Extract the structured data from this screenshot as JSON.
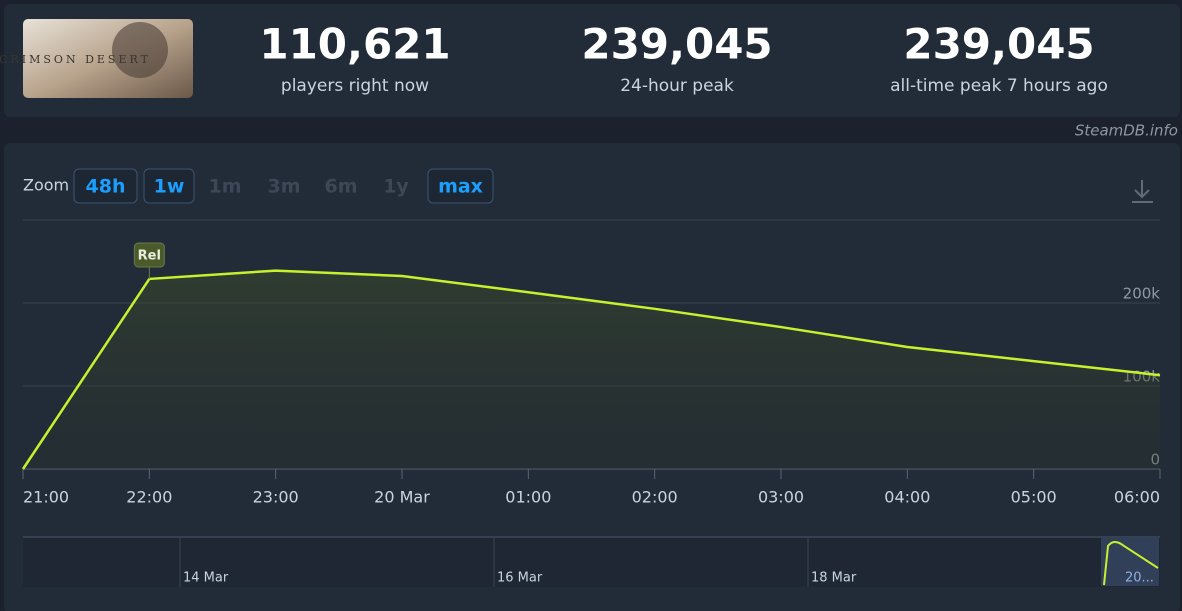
{
  "header": {
    "game_logo_text": "CRIMSON DESERT",
    "stats": [
      {
        "value": "110,621",
        "label": "players right now"
      },
      {
        "value": "239,045",
        "label": "24-hour peak"
      },
      {
        "value": "239,045",
        "label": "all-time peak 7 hours ago"
      }
    ],
    "credit": "SteamDB.info"
  },
  "zoom": {
    "label": "Zoom",
    "options": [
      {
        "label": "48h",
        "enabled": true
      },
      {
        "label": "1w",
        "enabled": true
      },
      {
        "label": "1m",
        "enabled": false
      },
      {
        "label": "3m",
        "enabled": false
      },
      {
        "label": "6m",
        "enabled": false
      },
      {
        "label": "1y",
        "enabled": false
      },
      {
        "label": "max",
        "enabled": true
      }
    ]
  },
  "chart_data": {
    "type": "area",
    "categories": [
      "21:00",
      "22:00",
      "23:00",
      "20 Mar",
      "01:00",
      "02:00",
      "03:00",
      "04:00",
      "05:00",
      "06:00"
    ],
    "series": [
      {
        "name": "Players",
        "color": "#c6f12e",
        "values": [
          0,
          229000,
          239045,
          232500,
          213000,
          193000,
          171000,
          147000,
          130000,
          113000
        ]
      }
    ],
    "ylim": [
      0,
      300000
    ],
    "yticks": [
      {
        "value": 0,
        "label": "0"
      },
      {
        "value": 100000,
        "label": "100k"
      },
      {
        "value": 200000,
        "label": "200k"
      }
    ],
    "grid": true,
    "annotation": {
      "text": "Rel",
      "x": "22:00"
    },
    "navigator": {
      "labels": [
        "14 Mar",
        "16 Mar",
        "18 Mar",
        "20..."
      ]
    }
  }
}
